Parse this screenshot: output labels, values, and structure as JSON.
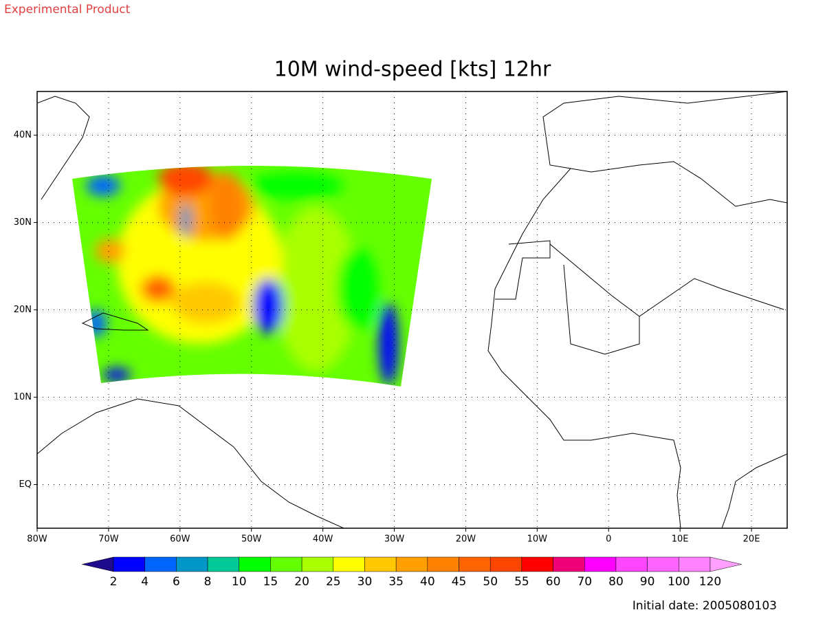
{
  "header": "Experimental Product",
  "chart_data": {
    "type": "map",
    "title": "10M wind-speed [kts] 12hr",
    "xlim": [
      -80,
      25
    ],
    "ylim": [
      -5,
      45
    ],
    "xticks": [
      {
        "value": -80,
        "label": "80W"
      },
      {
        "value": -70,
        "label": "70W"
      },
      {
        "value": -60,
        "label": "60W"
      },
      {
        "value": -50,
        "label": "50W"
      },
      {
        "value": -40,
        "label": "40W"
      },
      {
        "value": -30,
        "label": "30W"
      },
      {
        "value": -20,
        "label": "20W"
      },
      {
        "value": -10,
        "label": "10W"
      },
      0,
      {
        "value": 10,
        "label": "10E"
      },
      {
        "value": 20,
        "label": "20E"
      }
    ],
    "yticks": [
      {
        "value": 0,
        "label": "EQ"
      },
      {
        "value": 10,
        "label": "10N"
      },
      {
        "value": 20,
        "label": "20N"
      },
      {
        "value": 30,
        "label": "30N"
      },
      {
        "value": 40,
        "label": "40N"
      }
    ],
    "grid": true,
    "colorbar": {
      "levels": [
        2,
        4,
        6,
        8,
        10,
        15,
        20,
        25,
        30,
        35,
        40,
        45,
        50,
        55,
        60,
        70,
        80,
        90,
        100,
        120
      ],
      "colors": [
        "#1e0a8c",
        "#0000ff",
        "#0064ff",
        "#0096c8",
        "#00c896",
        "#00ff00",
        "#64ff00",
        "#aaff00",
        "#ffff00",
        "#ffc800",
        "#ffa000",
        "#ff8200",
        "#ff6400",
        "#ff4600",
        "#ff0000",
        "#f00078",
        "#ff00ff",
        "#ff46ff",
        "#ff64ff",
        "#ff82ff",
        "#ffa0ff"
      ]
    }
  },
  "footer": "Initial date: 2005080103"
}
